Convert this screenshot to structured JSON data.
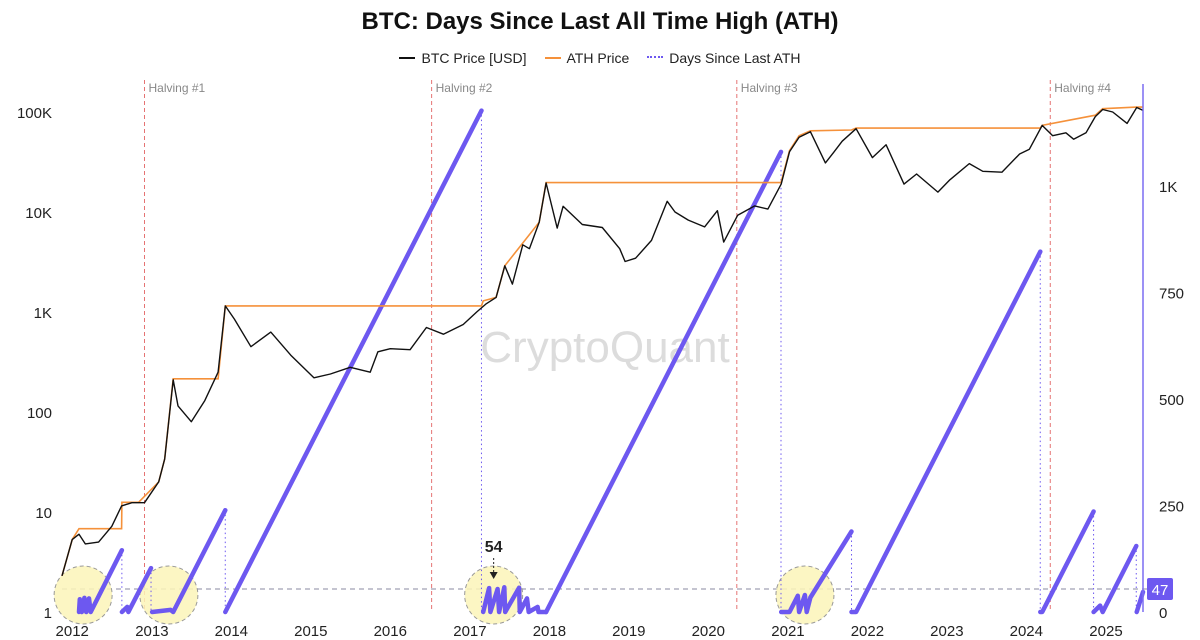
{
  "chart_data": {
    "type": "line",
    "title": "BTC: Days Since Last All Time High (ATH)",
    "watermark": "CryptoQuant",
    "legend": {
      "placement": "top-center",
      "entries": [
        {
          "label": "BTC Price [USD]",
          "color": "#111111",
          "style": "solid"
        },
        {
          "label": "ATH Price",
          "color": "#f5913a",
          "style": "solid"
        },
        {
          "label": "Days Since Last ATH",
          "color": "#6d58f0",
          "style": "dotted"
        }
      ]
    },
    "x_axis": {
      "type": "time",
      "range": [
        "2011-11-15",
        "2025-06-20"
      ],
      "tick_labels": [
        "2012",
        "2013",
        "2014",
        "2015",
        "2016",
        "2017",
        "2018",
        "2019",
        "2020",
        "2021",
        "2022",
        "2023",
        "2024",
        "2025"
      ]
    },
    "y_left": {
      "scale": "log",
      "range": [
        1,
        130000
      ],
      "ticks": [
        1,
        10,
        100,
        1000,
        10000,
        100000
      ],
      "tick_labels": [
        "1",
        "10",
        "100",
        "1K",
        "10K",
        "100K"
      ]
    },
    "y_right": {
      "scale": "linear",
      "range": [
        0,
        1200
      ],
      "ticks": [
        0,
        250,
        500,
        750,
        1000
      ],
      "tick_labels": [
        "0",
        "250",
        "500",
        "750",
        "1K"
      ],
      "current_value_label": "47"
    },
    "halvings": [
      {
        "label": "Halving #1",
        "date": "2012-11-28"
      },
      {
        "label": "Halving #2",
        "date": "2016-07-09"
      },
      {
        "label": "Halving #3",
        "date": "2020-05-11"
      },
      {
        "label": "Halving #4",
        "date": "2024-04-20"
      }
    ],
    "reference_line": {
      "days": 54,
      "label": "54"
    },
    "highlighted_periods": [
      "2012-02",
      "2013-03",
      "2017-04",
      "2021-03"
    ],
    "series": [
      {
        "name": "BTC Price [USD]",
        "color": "#111111",
        "points": [
          [
            "2011-11-15",
            2.3
          ],
          [
            "2012-01-01",
            5.3
          ],
          [
            "2012-02-01",
            6.0
          ],
          [
            "2012-03-01",
            4.8
          ],
          [
            "2012-05-01",
            5.0
          ],
          [
            "2012-07-01",
            7.2
          ],
          [
            "2012-08-15",
            11.5
          ],
          [
            "2012-10-01",
            12.4
          ],
          [
            "2012-11-28",
            12.4
          ],
          [
            "2013-02-01",
            20
          ],
          [
            "2013-03-01",
            34
          ],
          [
            "2013-04-09",
            210
          ],
          [
            "2013-05-01",
            115
          ],
          [
            "2013-07-01",
            80
          ],
          [
            "2013-09-01",
            130
          ],
          [
            "2013-11-01",
            250
          ],
          [
            "2013-12-04",
            1150
          ],
          [
            "2014-01-15",
            850
          ],
          [
            "2014-04-01",
            450
          ],
          [
            "2014-07-01",
            630
          ],
          [
            "2014-10-01",
            370
          ],
          [
            "2015-01-15",
            220
          ],
          [
            "2015-04-01",
            240
          ],
          [
            "2015-07-01",
            280
          ],
          [
            "2015-10-01",
            250
          ],
          [
            "2015-11-05",
            400
          ],
          [
            "2016-01-01",
            430
          ],
          [
            "2016-04-01",
            420
          ],
          [
            "2016-06-15",
            700
          ],
          [
            "2016-09-01",
            600
          ],
          [
            "2016-12-01",
            750
          ],
          [
            "2017-02-01",
            1000
          ],
          [
            "2017-03-15",
            1200
          ],
          [
            "2017-05-01",
            1400
          ],
          [
            "2017-06-10",
            2900
          ],
          [
            "2017-07-15",
            1900
          ],
          [
            "2017-09-01",
            4700
          ],
          [
            "2017-10-01",
            4300
          ],
          [
            "2017-11-15",
            7900
          ],
          [
            "2017-12-17",
            19500
          ],
          [
            "2018-02-06",
            6900
          ],
          [
            "2018-03-05",
            11400
          ],
          [
            "2018-06-01",
            7500
          ],
          [
            "2018-09-01",
            7000
          ],
          [
            "2018-11-20",
            4300
          ],
          [
            "2018-12-15",
            3200
          ],
          [
            "2019-02-01",
            3450
          ],
          [
            "2019-04-15",
            5200
          ],
          [
            "2019-06-26",
            12800
          ],
          [
            "2019-08-01",
            10000
          ],
          [
            "2019-10-01",
            8300
          ],
          [
            "2019-12-15",
            7100
          ],
          [
            "2020-02-12",
            10300
          ],
          [
            "2020-03-12",
            5000
          ],
          [
            "2020-05-15",
            9300
          ],
          [
            "2020-08-01",
            11500
          ],
          [
            "2020-10-01",
            10700
          ],
          [
            "2020-12-01",
            19000
          ],
          [
            "2021-01-08",
            40000
          ],
          [
            "2021-02-21",
            56000
          ],
          [
            "2021-04-14",
            63500
          ],
          [
            "2021-06-22",
            31000
          ],
          [
            "2021-08-01",
            40000
          ],
          [
            "2021-09-07",
            51000
          ],
          [
            "2021-11-10",
            68000
          ],
          [
            "2022-01-24",
            35000
          ],
          [
            "2022-03-28",
            47000
          ],
          [
            "2022-06-18",
            19000
          ],
          [
            "2022-08-15",
            24000
          ],
          [
            "2022-11-21",
            15800
          ],
          [
            "2023-01-15",
            21000
          ],
          [
            "2023-04-14",
            30500
          ],
          [
            "2023-06-15",
            25500
          ],
          [
            "2023-09-11",
            25000
          ],
          [
            "2023-12-01",
            38000
          ],
          [
            "2024-01-15",
            42500
          ],
          [
            "2024-03-14",
            73500
          ],
          [
            "2024-05-01",
            58000
          ],
          [
            "2024-07-01",
            62000
          ],
          [
            "2024-08-05",
            53500
          ],
          [
            "2024-10-01",
            62000
          ],
          [
            "2024-11-13",
            90000
          ],
          [
            "2024-12-17",
            106000
          ],
          [
            "2025-02-01",
            100000
          ],
          [
            "2025-04-08",
            77000
          ],
          [
            "2025-05-22",
            111000
          ],
          [
            "2025-06-20",
            104000
          ]
        ]
      },
      {
        "name": "ATH Price",
        "color": "#f5913a",
        "points": [
          [
            "2011-11-15",
            2.3
          ],
          [
            "2012-01-01",
            5.3
          ],
          [
            "2012-02-01",
            6.8
          ],
          [
            "2012-08-15",
            6.8
          ],
          [
            "2012-08-16",
            12.5
          ],
          [
            "2012-11-01",
            12.5
          ],
          [
            "2013-02-01",
            20
          ],
          [
            "2013-03-01",
            34
          ],
          [
            "2013-04-09",
            215
          ],
          [
            "2013-11-01",
            215
          ],
          [
            "2013-12-04",
            1150
          ],
          [
            "2017-02-23",
            1150
          ],
          [
            "2017-03-03",
            1290
          ],
          [
            "2017-05-01",
            1400
          ],
          [
            "2017-06-10",
            2900
          ],
          [
            "2017-09-01",
            4900
          ],
          [
            "2017-11-15",
            7900
          ],
          [
            "2017-12-17",
            19700
          ],
          [
            "2020-11-30",
            19700
          ],
          [
            "2021-01-08",
            41000
          ],
          [
            "2021-02-21",
            58000
          ],
          [
            "2021-04-14",
            64800
          ],
          [
            "2021-10-20",
            66000
          ],
          [
            "2021-11-10",
            69000
          ],
          [
            "2024-03-05",
            69000
          ],
          [
            "2024-03-14",
            73700
          ],
          [
            "2024-11-13",
            93000
          ],
          [
            "2024-12-17",
            108000
          ],
          [
            "2025-05-22",
            111900
          ],
          [
            "2025-06-20",
            111900
          ]
        ]
      },
      {
        "name": "Days Since Last ATH",
        "color": "#6d58f0",
        "segments": [
          [
            [
              "2012-02-01",
              0
            ],
            [
              "2012-02-05",
              30
            ],
            [
              "2012-02-14",
              0
            ],
            [
              "2012-02-26",
              33
            ],
            [
              "2012-03-05",
              0
            ],
            [
              "2012-03-18",
              32
            ],
            [
              "2012-03-26",
              0
            ],
            [
              "2012-08-16",
              145
            ]
          ],
          [
            [
              "2012-08-16",
              0
            ],
            [
              "2012-09-10",
              12
            ],
            [
              "2012-09-15",
              0
            ],
            [
              "2012-12-28",
              103
            ]
          ],
          [
            [
              "2013-01-02",
              0
            ],
            [
              "2013-03-28",
              5
            ],
            [
              "2013-04-09",
              0
            ],
            [
              "2013-12-04",
              239
            ]
          ],
          [
            [
              "2013-12-04",
              0
            ],
            [
              "2017-02-23",
              1177
            ]
          ],
          [
            [
              "2017-03-03",
              0
            ],
            [
              "2017-03-30",
              56
            ],
            [
              "2017-04-05",
              0
            ],
            [
              "2017-05-08",
              54
            ],
            [
              "2017-05-15",
              0
            ],
            [
              "2017-06-08",
              58
            ],
            [
              "2017-06-12",
              0
            ],
            [
              "2017-08-15",
              57
            ],
            [
              "2017-08-18",
              0
            ],
            [
              "2017-09-20",
              32
            ],
            [
              "2017-09-28",
              0
            ],
            [
              "2017-11-08",
              12
            ],
            [
              "2017-11-12",
              0
            ],
            [
              "2017-12-17",
              0
            ]
          ],
          [
            [
              "2017-12-17",
              0
            ],
            [
              "2020-11-30",
              1080
            ]
          ],
          [
            [
              "2020-12-01",
              0
            ],
            [
              "2020-12-30",
              0
            ],
            [
              "2021-01-08",
              0
            ],
            [
              "2021-02-15",
              38
            ],
            [
              "2021-02-21",
              0
            ],
            [
              "2021-03-20",
              40
            ],
            [
              "2021-03-28",
              0
            ],
            [
              "2021-04-14",
              34
            ],
            [
              "2021-10-20",
              189
            ]
          ],
          [
            [
              "2021-10-20",
              0
            ],
            [
              "2021-11-10",
              0
            ],
            [
              "2021-11-10",
              0
            ],
            [
              "2024-03-05",
              846
            ]
          ],
          [
            [
              "2024-03-05",
              0
            ],
            [
              "2024-03-14",
              0
            ],
            [
              "2024-11-05",
              236
            ]
          ],
          [
            [
              "2024-11-05",
              0
            ],
            [
              "2024-12-05",
              15
            ],
            [
              "2024-12-17",
              0
            ],
            [
              "2025-05-20",
              155
            ]
          ],
          [
            [
              "2025-05-22",
              0
            ],
            [
              "2025-06-20",
              47
            ]
          ]
        ]
      }
    ]
  }
}
